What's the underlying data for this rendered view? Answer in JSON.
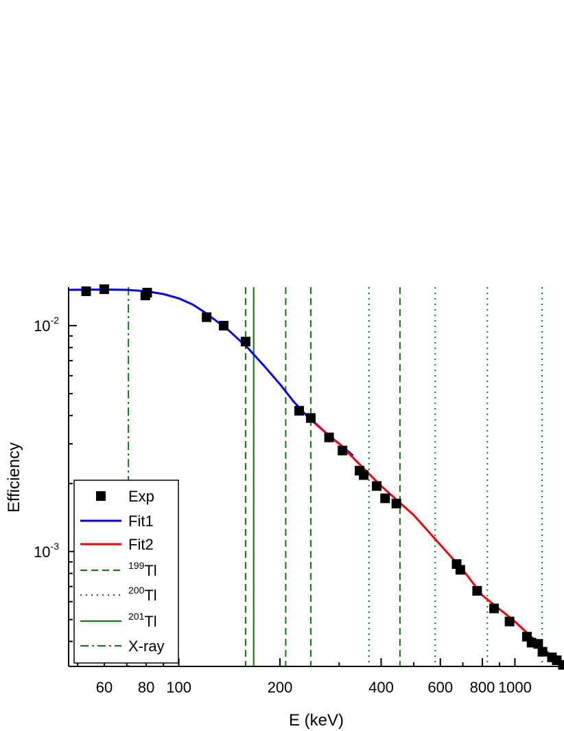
{
  "chart_data": {
    "type": "scatter",
    "xlabel": "E (keV)",
    "ylabel": "Efficiency",
    "xscale": "log",
    "yscale": "log",
    "xlim": [
      47,
      1400
    ],
    "ylim": [
      0.00031,
      0.0148
    ],
    "x_ticks": [
      {
        "value": 60,
        "label": "60"
      },
      {
        "value": 80,
        "label": "80"
      },
      {
        "value": 100,
        "label": "100"
      },
      {
        "value": 200,
        "label": "200"
      },
      {
        "value": 400,
        "label": "400"
      },
      {
        "value": 600,
        "label": "600"
      },
      {
        "value": 800,
        "label": "800"
      },
      {
        "value": 1000,
        "label": "1000"
      }
    ],
    "y_ticks": [
      {
        "value": 0.01,
        "base": "10",
        "exp": "-2"
      },
      {
        "value": 0.001,
        "base": "10",
        "exp": "-3"
      }
    ],
    "legend_position": "bottom-left",
    "legend": [
      {
        "key": "exp",
        "label": "Exp",
        "sup": ""
      },
      {
        "key": "fit1",
        "label": "Fit1",
        "sup": ""
      },
      {
        "key": "fit2",
        "label": "Fit2",
        "sup": ""
      },
      {
        "key": "tl199",
        "label": "Tl",
        "sup": "199"
      },
      {
        "key": "tl200",
        "label": "Tl",
        "sup": "200"
      },
      {
        "key": "tl201",
        "label": "Tl",
        "sup": "201"
      },
      {
        "key": "xray",
        "label": "X-ray",
        "sup": ""
      }
    ],
    "colors": {
      "exp": "#000000",
      "fit1": "#0000ff",
      "fit2": "#ff0000",
      "lines": "#008000"
    },
    "exp_points": [
      {
        "x": 53,
        "y": 0.0142
      },
      {
        "x": 60,
        "y": 0.0145
      },
      {
        "x": 79.5,
        "y": 0.0136
      },
      {
        "x": 80.5,
        "y": 0.014
      },
      {
        "x": 121,
        "y": 0.0109
      },
      {
        "x": 136,
        "y": 0.01
      },
      {
        "x": 158,
        "y": 0.0085
      },
      {
        "x": 228,
        "y": 0.0042
      },
      {
        "x": 247,
        "y": 0.0039
      },
      {
        "x": 280,
        "y": 0.0032
      },
      {
        "x": 307,
        "y": 0.0028
      },
      {
        "x": 345,
        "y": 0.00228
      },
      {
        "x": 355,
        "y": 0.00218
      },
      {
        "x": 388,
        "y": 0.00195
      },
      {
        "x": 411,
        "y": 0.00172
      },
      {
        "x": 444,
        "y": 0.00163
      },
      {
        "x": 671,
        "y": 0.00088
      },
      {
        "x": 688,
        "y": 0.00083
      },
      {
        "x": 772,
        "y": 0.00067
      },
      {
        "x": 867,
        "y": 0.00056
      },
      {
        "x": 964,
        "y": 0.00049
      },
      {
        "x": 1086,
        "y": 0.00042
      },
      {
        "x": 1121,
        "y": 0.000395
      },
      {
        "x": 1173,
        "y": 0.00039
      },
      {
        "x": 1208,
        "y": 0.00036
      },
      {
        "x": 1289,
        "y": 0.00034
      },
      {
        "x": 1332,
        "y": 0.00033
      },
      {
        "x": 1390,
        "y": 0.000315
      }
    ],
    "fit1": [
      {
        "x": 47,
        "y": 0.0144
      },
      {
        "x": 60,
        "y": 0.01445
      },
      {
        "x": 70,
        "y": 0.0144
      },
      {
        "x": 80,
        "y": 0.0142
      },
      {
        "x": 90,
        "y": 0.0138
      },
      {
        "x": 100,
        "y": 0.0132
      },
      {
        "x": 110,
        "y": 0.0124
      },
      {
        "x": 120,
        "y": 0.0114
      },
      {
        "x": 140,
        "y": 0.0096
      },
      {
        "x": 160,
        "y": 0.008
      },
      {
        "x": 180,
        "y": 0.0066
      },
      {
        "x": 200,
        "y": 0.0055
      },
      {
        "x": 220,
        "y": 0.0046
      },
      {
        "x": 240,
        "y": 0.004
      },
      {
        "x": 260,
        "y": 0.0036
      },
      {
        "x": 280,
        "y": 0.00325
      },
      {
        "x": 300,
        "y": 0.003
      },
      {
        "x": 330,
        "y": 0.00266
      }
    ],
    "fit2": [
      {
        "x": 243,
        "y": 0.0039
      },
      {
        "x": 300,
        "y": 0.003
      },
      {
        "x": 400,
        "y": 0.00195
      },
      {
        "x": 500,
        "y": 0.00145
      },
      {
        "x": 600,
        "y": 0.00107
      },
      {
        "x": 700,
        "y": 0.00083
      },
      {
        "x": 800,
        "y": 0.00064
      },
      {
        "x": 1000,
        "y": 0.00049
      },
      {
        "x": 1200,
        "y": 0.00038
      },
      {
        "x": 1400,
        "y": 0.000305
      }
    ],
    "vlines": [
      {
        "group": "tl199",
        "style": "dashed",
        "x": 158
      },
      {
        "group": "tl199",
        "style": "dashed",
        "x": 208
      },
      {
        "group": "tl199",
        "style": "dashed",
        "x": 247
      },
      {
        "group": "tl199",
        "style": "dashed",
        "x": 455
      },
      {
        "group": "tl200",
        "style": "dotted",
        "x": 368
      },
      {
        "group": "tl200",
        "style": "dotted",
        "x": 579
      },
      {
        "group": "tl200",
        "style": "dotted",
        "x": 828
      },
      {
        "group": "tl200",
        "style": "dotted",
        "x": 1205
      },
      {
        "group": "tl201",
        "style": "solid",
        "x": 167
      },
      {
        "group": "xray",
        "style": "dashdot",
        "x": 70.8
      }
    ]
  }
}
